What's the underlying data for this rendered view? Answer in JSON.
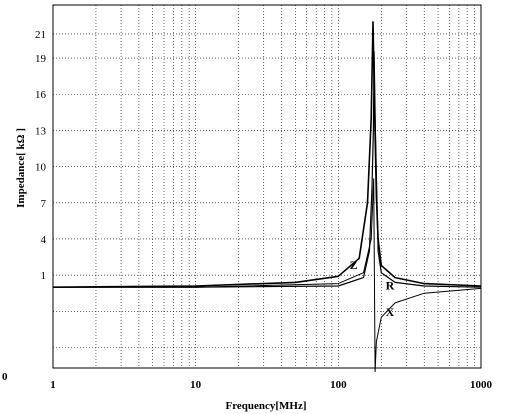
{
  "chart_data": {
    "type": "line",
    "xlabel": "Frequency[MHz]",
    "ylabel": "Impedance[ kΩ ]",
    "x_scale": "log",
    "xlim": [
      1,
      1000
    ],
    "ylim": [
      -6.7,
      23.4
    ],
    "x_ticks": [
      1,
      10,
      100,
      1000
    ],
    "x_tick_labels": [
      "1",
      "10",
      "100",
      "1000"
    ],
    "y_ticks": [
      1,
      4,
      7,
      10,
      13,
      16,
      19,
      21
    ],
    "y_tick_labels": [
      "1",
      "4",
      "7",
      "10",
      "13",
      "16",
      "19",
      "21"
    ],
    "origin_label": "0",
    "grid": true,
    "series": [
      {
        "name": "Z",
        "x": [
          1,
          10,
          50,
          100,
          140,
          160,
          170,
          175,
          180,
          185,
          190,
          200,
          250,
          400,
          1000
        ],
        "y": [
          0.0,
          0.1,
          0.4,
          0.9,
          2.4,
          7.0,
          14.0,
          22.0,
          14.0,
          7.5,
          4.0,
          1.8,
          0.8,
          0.3,
          0.1
        ]
      },
      {
        "name": "R",
        "x": [
          1,
          10,
          100,
          150,
          165,
          172,
          176,
          178,
          182,
          190,
          200,
          250,
          400,
          1000
        ],
        "y": [
          0.0,
          0.0,
          0.1,
          0.8,
          3.0,
          8.0,
          13.0,
          19.5,
          13.0,
          3.0,
          1.2,
          0.4,
          0.1,
          0.0
        ]
      },
      {
        "name": "X",
        "x": [
          1,
          10,
          100,
          150,
          170,
          177,
          181,
          185,
          200,
          250,
          400,
          1000
        ],
        "y": [
          0.0,
          0.0,
          0.3,
          1.2,
          4.0,
          9.0,
          -7.0,
          -4.5,
          -2.5,
          -1.3,
          -0.5,
          -0.1
        ]
      }
    ],
    "annotations": [
      "Z",
      "R",
      "X"
    ]
  }
}
